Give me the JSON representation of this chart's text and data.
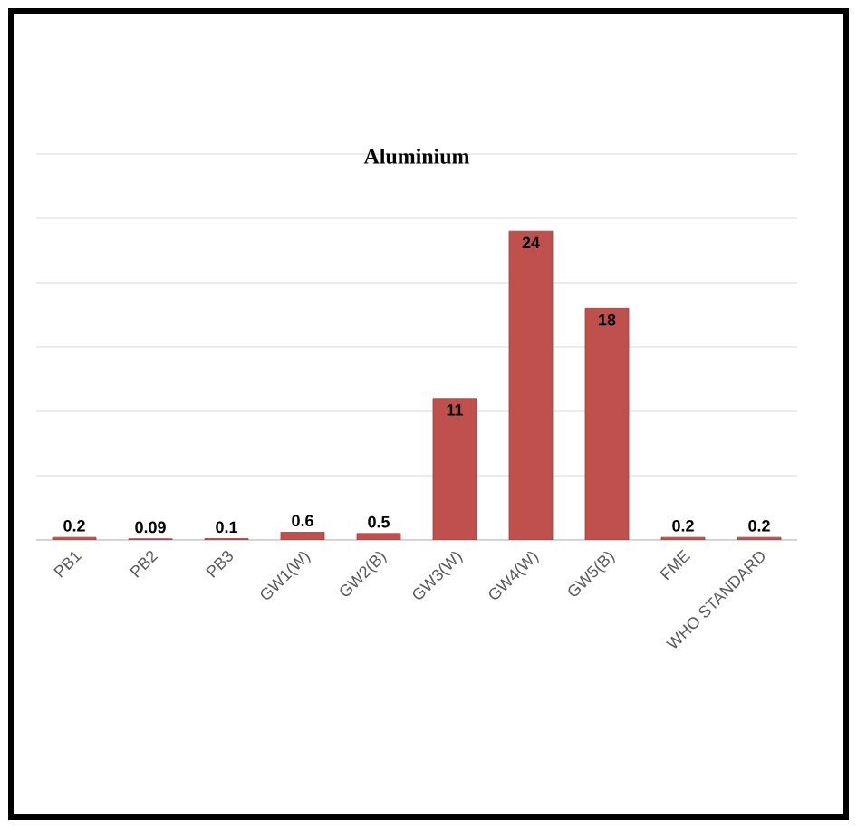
{
  "chart_data": {
    "type": "bar",
    "title": "Aluminium",
    "categories": [
      "PB1",
      "PB2",
      "PB3",
      "GW1(W)",
      "GW2(B)",
      "GW3(W)",
      "GW4(W)",
      "GW5(B)",
      "FME",
      "WHO STANDARD"
    ],
    "values": [
      0.2,
      0.09,
      0.1,
      0.6,
      0.5,
      11,
      24,
      18,
      0.2,
      0.2
    ],
    "color": "#c0504d",
    "data_labels": true,
    "grid": "y",
    "ylim": [
      0,
      30
    ],
    "yticks": [
      {
        "value": 0,
        "label": null
      },
      {
        "value": 5,
        "label": null
      },
      {
        "value": 10,
        "label": null
      },
      {
        "value": 15,
        "label": null
      },
      {
        "value": 20,
        "label": null
      },
      {
        "value": 25,
        "label": null
      },
      {
        "value": 30,
        "label": null
      }
    ],
    "tick_labels": "x"
  }
}
